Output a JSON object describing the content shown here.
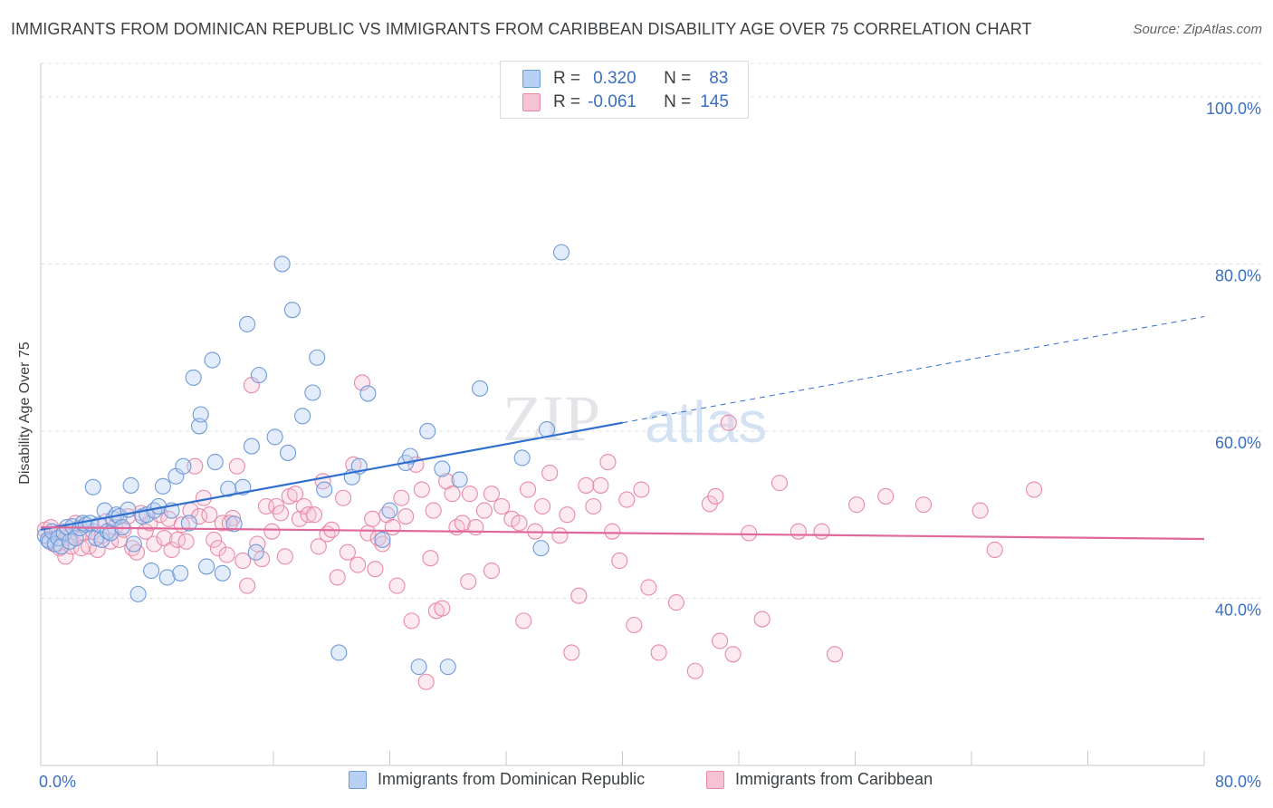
{
  "title": "IMMIGRANTS FROM DOMINICAN REPUBLIC VS IMMIGRANTS FROM CARIBBEAN DISABILITY AGE OVER 75 CORRELATION CHART",
  "source": "Source: ZipAtlas.com",
  "watermark": {
    "zip": "ZIP",
    "atlas": "atlas"
  },
  "legend": {
    "r_label": "R =",
    "n_label": "N =",
    "series": [
      {
        "r": "0.320",
        "n": "83"
      },
      {
        "r": "-0.061",
        "n": "145"
      }
    ]
  },
  "colors": {
    "blue_fill": "#b8d0f2",
    "blue_stroke": "#6f9ad8",
    "blue_line": "#2f6fd0",
    "pink_fill": "#f6c3d4",
    "pink_stroke": "#e88aa8",
    "pink_line": "#e0689a",
    "tick_label": "#3a6fc4",
    "grid": "#dde0e4"
  },
  "chart_data": {
    "type": "scatter",
    "title": "IMMIGRANTS FROM DOMINICAN REPUBLIC VS IMMIGRANTS FROM CARIBBEAN DISABILITY AGE OVER 75 CORRELATION CHART",
    "xlabel": "",
    "ylabel": "Disability Age Over 75",
    "xlim": [
      0,
      80
    ],
    "ylim": [
      20,
      104
    ],
    "x_tick_labels": [
      "0.0%",
      "80.0%"
    ],
    "y_ticks": [
      40,
      60,
      80,
      100
    ],
    "y_tick_labels": [
      "40.0%",
      "60.0%",
      "80.0%",
      "100.0%"
    ],
    "grid": true,
    "legend_position": "top-center",
    "series": [
      {
        "name": "Immigrants from Dominican Republic",
        "r": 0.32,
        "n": 83,
        "trend": {
          "x0": 0,
          "y0": 48.2,
          "x1": 40,
          "y1": 61.0,
          "dashed_to_x": 80,
          "dashed_to_y": 73.7
        },
        "points": [
          [
            0.3,
            47.5
          ],
          [
            0.5,
            47.0
          ],
          [
            0.6,
            46.8
          ],
          [
            0.8,
            48.0
          ],
          [
            1.0,
            46.5
          ],
          [
            1.2,
            47.2
          ],
          [
            1.4,
            46.2
          ],
          [
            1.6,
            47.8
          ],
          [
            1.8,
            48.5
          ],
          [
            2.0,
            46.8
          ],
          [
            2.2,
            48.6
          ],
          [
            2.4,
            47.2
          ],
          [
            2.7,
            48.4
          ],
          [
            2.9,
            49.0
          ],
          [
            3.1,
            48.8
          ],
          [
            3.4,
            49.0
          ],
          [
            3.6,
            53.3
          ],
          [
            3.8,
            47.2
          ],
          [
            4.0,
            48.8
          ],
          [
            4.2,
            47.0
          ],
          [
            4.4,
            50.5
          ],
          [
            4.6,
            48.0
          ],
          [
            4.8,
            47.8
          ],
          [
            5.0,
            49.5
          ],
          [
            5.2,
            50.0
          ],
          [
            5.4,
            49.8
          ],
          [
            5.6,
            48.5
          ],
          [
            6.0,
            50.6
          ],
          [
            6.2,
            53.5
          ],
          [
            6.4,
            46.5
          ],
          [
            6.7,
            40.5
          ],
          [
            7.0,
            49.8
          ],
          [
            7.3,
            50.0
          ],
          [
            7.6,
            43.3
          ],
          [
            7.8,
            50.5
          ],
          [
            8.1,
            51.0
          ],
          [
            8.4,
            53.4
          ],
          [
            8.7,
            42.5
          ],
          [
            9.0,
            50.5
          ],
          [
            9.3,
            54.6
          ],
          [
            9.6,
            43.0
          ],
          [
            9.8,
            55.8
          ],
          [
            10.2,
            49.0
          ],
          [
            10.5,
            66.4
          ],
          [
            10.9,
            60.6
          ],
          [
            11.0,
            62.0
          ],
          [
            11.4,
            43.8
          ],
          [
            11.8,
            68.5
          ],
          [
            12.0,
            56.3
          ],
          [
            12.5,
            43.0
          ],
          [
            12.9,
            53.1
          ],
          [
            13.3,
            48.9
          ],
          [
            13.9,
            53.3
          ],
          [
            14.2,
            72.8
          ],
          [
            14.5,
            58.2
          ],
          [
            14.8,
            45.5
          ],
          [
            15.0,
            66.7
          ],
          [
            16.1,
            59.3
          ],
          [
            16.6,
            80.0
          ],
          [
            17.0,
            57.4
          ],
          [
            17.3,
            74.5
          ],
          [
            18.0,
            61.8
          ],
          [
            18.7,
            64.6
          ],
          [
            19.0,
            68.8
          ],
          [
            19.5,
            53.0
          ],
          [
            20.5,
            33.5
          ],
          [
            21.4,
            54.5
          ],
          [
            21.9,
            55.8
          ],
          [
            22.5,
            64.5
          ],
          [
            23.5,
            47.0
          ],
          [
            24.0,
            50.5
          ],
          [
            25.1,
            56.2
          ],
          [
            25.4,
            57.0
          ],
          [
            26.0,
            31.8
          ],
          [
            26.6,
            60.0
          ],
          [
            27.6,
            55.5
          ],
          [
            28.0,
            31.8
          ],
          [
            28.8,
            54.2
          ],
          [
            30.2,
            65.1
          ],
          [
            33.1,
            56.8
          ],
          [
            34.4,
            46.0
          ],
          [
            34.8,
            60.2
          ],
          [
            35.8,
            81.4
          ]
        ]
      },
      {
        "name": "Immigrants from Caribbean",
        "r": -0.061,
        "n": 145,
        "trend": {
          "x0": 0,
          "y0": 48.5,
          "x1": 80,
          "y1": 47.1
        },
        "points": [
          [
            0.3,
            48.2
          ],
          [
            0.5,
            47.0
          ],
          [
            0.7,
            48.5
          ],
          [
            0.9,
            46.5
          ],
          [
            1.1,
            47.8
          ],
          [
            1.3,
            46.0
          ],
          [
            1.5,
            48.0
          ],
          [
            1.7,
            45.0
          ],
          [
            1.9,
            47.3
          ],
          [
            2.1,
            46.2
          ],
          [
            2.4,
            49.0
          ],
          [
            2.6,
            47.5
          ],
          [
            2.8,
            46.0
          ],
          [
            3.0,
            47.8
          ],
          [
            3.3,
            46.2
          ],
          [
            3.6,
            48.0
          ],
          [
            3.9,
            45.8
          ],
          [
            4.2,
            47.5
          ],
          [
            4.5,
            49.2
          ],
          [
            4.8,
            46.8
          ],
          [
            5.1,
            48.5
          ],
          [
            5.4,
            47.0
          ],
          [
            5.7,
            48.2
          ],
          [
            6.0,
            49.8
          ],
          [
            6.3,
            46.0
          ],
          [
            6.6,
            45.5
          ],
          [
            6.9,
            50.2
          ],
          [
            7.2,
            48.0
          ],
          [
            7.5,
            49.0
          ],
          [
            7.8,
            46.5
          ],
          [
            8.2,
            50.0
          ],
          [
            8.5,
            47.2
          ],
          [
            8.8,
            49.5
          ],
          [
            9.0,
            45.8
          ],
          [
            9.4,
            47.0
          ],
          [
            9.7,
            48.8
          ],
          [
            10.0,
            46.8
          ],
          [
            10.3,
            50.5
          ],
          [
            10.6,
            55.8
          ],
          [
            10.9,
            49.8
          ],
          [
            11.2,
            52.0
          ],
          [
            11.6,
            50.0
          ],
          [
            11.9,
            47.0
          ],
          [
            12.2,
            46.0
          ],
          [
            12.5,
            49.0
          ],
          [
            12.8,
            45.2
          ],
          [
            13.2,
            49.6
          ],
          [
            13.5,
            55.8
          ],
          [
            13.9,
            44.5
          ],
          [
            14.2,
            41.5
          ],
          [
            14.5,
            65.5
          ],
          [
            14.9,
            46.5
          ],
          [
            15.2,
            44.7
          ],
          [
            15.5,
            51.0
          ],
          [
            15.9,
            48.0
          ],
          [
            16.2,
            51.0
          ],
          [
            16.5,
            50.2
          ],
          [
            16.8,
            45.0
          ],
          [
            17.1,
            52.2
          ],
          [
            17.5,
            52.5
          ],
          [
            17.8,
            49.5
          ],
          [
            18.1,
            51.0
          ],
          [
            18.4,
            50.0
          ],
          [
            18.8,
            50.0
          ],
          [
            19.1,
            46.2
          ],
          [
            19.4,
            54.0
          ],
          [
            19.7,
            47.7
          ],
          [
            20.0,
            48.2
          ],
          [
            20.4,
            42.5
          ],
          [
            20.8,
            52.0
          ],
          [
            21.1,
            45.5
          ],
          [
            21.5,
            56.0
          ],
          [
            21.8,
            44.0
          ],
          [
            22.1,
            65.8
          ],
          [
            22.5,
            47.8
          ],
          [
            22.8,
            49.5
          ],
          [
            23.2,
            47.2
          ],
          [
            23.5,
            46.5
          ],
          [
            23.8,
            50.0
          ],
          [
            24.2,
            48.5
          ],
          [
            24.5,
            41.5
          ],
          [
            24.8,
            52.0
          ],
          [
            25.1,
            49.8
          ],
          [
            25.5,
            37.3
          ],
          [
            25.8,
            56.0
          ],
          [
            26.2,
            53.0
          ],
          [
            26.5,
            30.0
          ],
          [
            26.8,
            44.8
          ],
          [
            27.0,
            50.5
          ],
          [
            27.2,
            38.5
          ],
          [
            27.6,
            38.8
          ],
          [
            27.9,
            54.0
          ],
          [
            28.3,
            52.5
          ],
          [
            28.6,
            48.5
          ],
          [
            29.0,
            49.0
          ],
          [
            29.5,
            52.5
          ],
          [
            29.9,
            48.5
          ],
          [
            30.5,
            50.5
          ],
          [
            31.0,
            52.5
          ],
          [
            31.7,
            51.0
          ],
          [
            32.4,
            49.5
          ],
          [
            32.9,
            49.0
          ],
          [
            33.2,
            37.3
          ],
          [
            33.5,
            53.0
          ],
          [
            34.0,
            48.0
          ],
          [
            34.5,
            51.0
          ],
          [
            35.0,
            55.0
          ],
          [
            35.7,
            47.5
          ],
          [
            36.2,
            50.0
          ],
          [
            36.5,
            33.5
          ],
          [
            37.0,
            40.3
          ],
          [
            37.5,
            53.5
          ],
          [
            38.0,
            51.0
          ],
          [
            38.5,
            53.5
          ],
          [
            39.0,
            56.3
          ],
          [
            39.3,
            48.0
          ],
          [
            39.8,
            44.5
          ],
          [
            40.3,
            51.8
          ],
          [
            40.8,
            36.8
          ],
          [
            41.3,
            53.0
          ],
          [
            41.8,
            41.3
          ],
          [
            42.5,
            33.5
          ],
          [
            43.7,
            39.5
          ],
          [
            45.0,
            31.3
          ],
          [
            46.0,
            51.3
          ],
          [
            46.4,
            52.2
          ],
          [
            46.7,
            34.9
          ],
          [
            47.3,
            61.0
          ],
          [
            47.6,
            33.3
          ],
          [
            48.7,
            47.8
          ],
          [
            49.6,
            37.5
          ],
          [
            50.8,
            53.8
          ],
          [
            52.1,
            48.0
          ],
          [
            53.7,
            48.0
          ],
          [
            54.6,
            33.3
          ],
          [
            56.1,
            51.2
          ],
          [
            58.1,
            52.2
          ],
          [
            60.7,
            51.2
          ],
          [
            64.6,
            50.5
          ],
          [
            65.6,
            45.8
          ],
          [
            68.3,
            53.0
          ],
          [
            31.0,
            43.3
          ],
          [
            29.4,
            42.0
          ],
          [
            23.0,
            43.5
          ],
          [
            13.0,
            49.0
          ]
        ]
      }
    ]
  },
  "bottom_legend": {
    "series1": "Immigrants from Dominican Republic",
    "series2": "Immigrants from Caribbean"
  }
}
